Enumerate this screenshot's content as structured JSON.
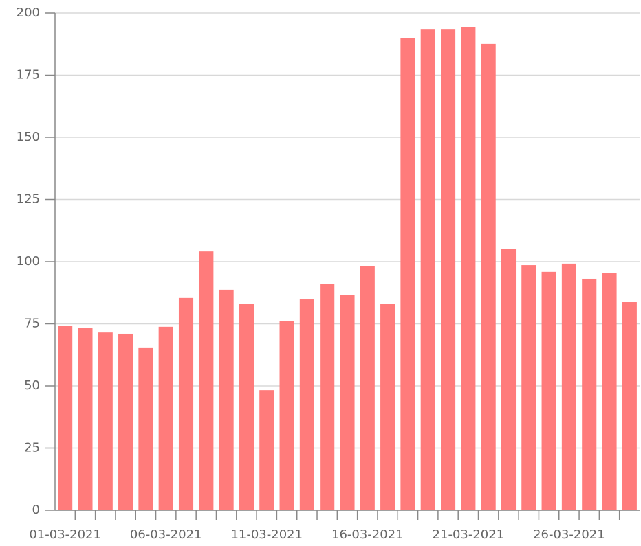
{
  "chart_data": {
    "type": "bar",
    "categories": [
      "01-03-2021",
      null,
      null,
      null,
      null,
      "06-03-2021",
      null,
      null,
      null,
      null,
      "11-03-2021",
      null,
      null,
      null,
      null,
      "16-03-2021",
      null,
      null,
      null,
      null,
      "21-03-2021",
      null,
      null,
      null,
      null,
      "26-03-2021",
      null,
      null,
      null
    ],
    "values": [
      74.3,
      73.2,
      71.5,
      71,
      65.5,
      73.8,
      85.4,
      104.1,
      88.7,
      83.1,
      48.3,
      76,
      84.8,
      90.9,
      86.5,
      98.1,
      83.1,
      189.8,
      193.6,
      193.6,
      194.2,
      187.6,
      105.2,
      98.6,
      95.9,
      99.2,
      93.1,
      95.3,
      83.7
    ],
    "color": "#ff7b7b",
    "ylim": [
      0,
      200
    ],
    "yticks": [
      0,
      25,
      50,
      75,
      100,
      125,
      150,
      175,
      200
    ],
    "grid": true
  }
}
